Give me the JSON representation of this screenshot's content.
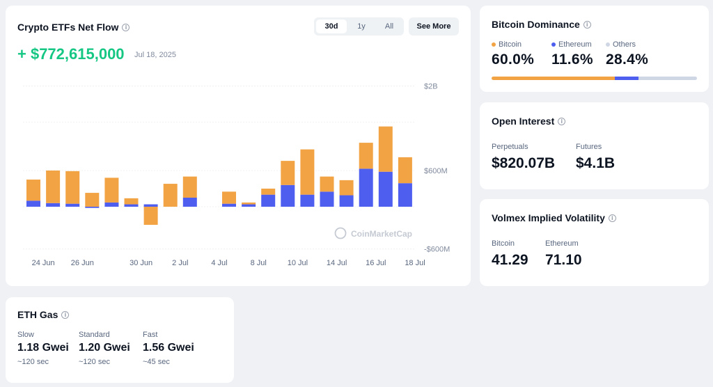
{
  "netflow": {
    "title": "Crypto ETFs Net Flow",
    "tabs": [
      "30d",
      "1y",
      "All"
    ],
    "active_tab": "30d",
    "see_more": "See More",
    "value": "+ $772,615,000",
    "date": "Jul 18, 2025",
    "watermark": "CoinMarketCap",
    "colors": {
      "btc": "#f2a445",
      "eth": "#4e5ff0",
      "positive": "#16c784"
    }
  },
  "chart_data": {
    "type": "bar",
    "stacked": true,
    "title": "Crypto ETFs Net Flow",
    "x": [
      "Jun 23",
      "Jun 24",
      "Jun 25",
      "Jun 26",
      "Jun 27",
      "Jun 30",
      "Jul 1",
      "Jul 2",
      "Jul 3",
      "Jul 7",
      "Jul 8",
      "Jul 9",
      "Jul 10",
      "Jul 11",
      "Jul 14",
      "Jul 15",
      "Jul 16",
      "Jul 17",
      "Jul 18"
    ],
    "x_tick_labels": [
      "24 Jun",
      "26 Jun",
      "30 Jun",
      "2 Jul",
      "4 Jul",
      "8 Jul",
      "10 Jul",
      "14 Jul",
      "16 Jul",
      "18 Jul"
    ],
    "series": [
      {
        "color": "#f2a445",
        "values": [
          350,
          540,
          540,
          230,
          410,
          100,
          -300,
          380,
          350,
          200,
          30,
          100,
          400,
          750,
          250,
          250,
          430,
          750,
          430
        ]
      },
      {
        "color": "#4e5ff0",
        "values": [
          100,
          60,
          50,
          -20,
          70,
          40,
          40,
          0,
          150,
          50,
          40,
          200,
          360,
          200,
          250,
          190,
          630,
          580,
          390
        ]
      }
    ],
    "y_ticks": [
      "$2B",
      "$600M",
      "-$600M"
    ],
    "ylim": [
      -700,
      2000
    ],
    "grid": true
  },
  "dominance": {
    "title": "Bitcoin Dominance",
    "items": [
      {
        "label": "Bitcoin",
        "value": "60.0%",
        "pct": 60.0,
        "color": "#f2a445"
      },
      {
        "label": "Ethereum",
        "value": "11.6%",
        "pct": 11.6,
        "color": "#4e5ff0"
      },
      {
        "label": "Others",
        "value": "28.4%",
        "pct": 28.4,
        "color": "#cfd6e4"
      }
    ]
  },
  "open_interest": {
    "title": "Open Interest",
    "items": [
      {
        "label": "Perpetuals",
        "value": "$820.07B"
      },
      {
        "label": "Futures",
        "value": "$4.1B"
      }
    ]
  },
  "volatility": {
    "title": "Volmex Implied Volatility",
    "items": [
      {
        "label": "Bitcoin",
        "value": "41.29"
      },
      {
        "label": "Ethereum",
        "value": "71.10"
      }
    ]
  },
  "eth_gas": {
    "title": "ETH Gas",
    "items": [
      {
        "label": "Slow",
        "value": "1.18 Gwei",
        "time": "~120 sec"
      },
      {
        "label": "Standard",
        "value": "1.20 Gwei",
        "time": "~120 sec"
      },
      {
        "label": "Fast",
        "value": "1.56 Gwei",
        "time": "~45 sec"
      }
    ]
  }
}
